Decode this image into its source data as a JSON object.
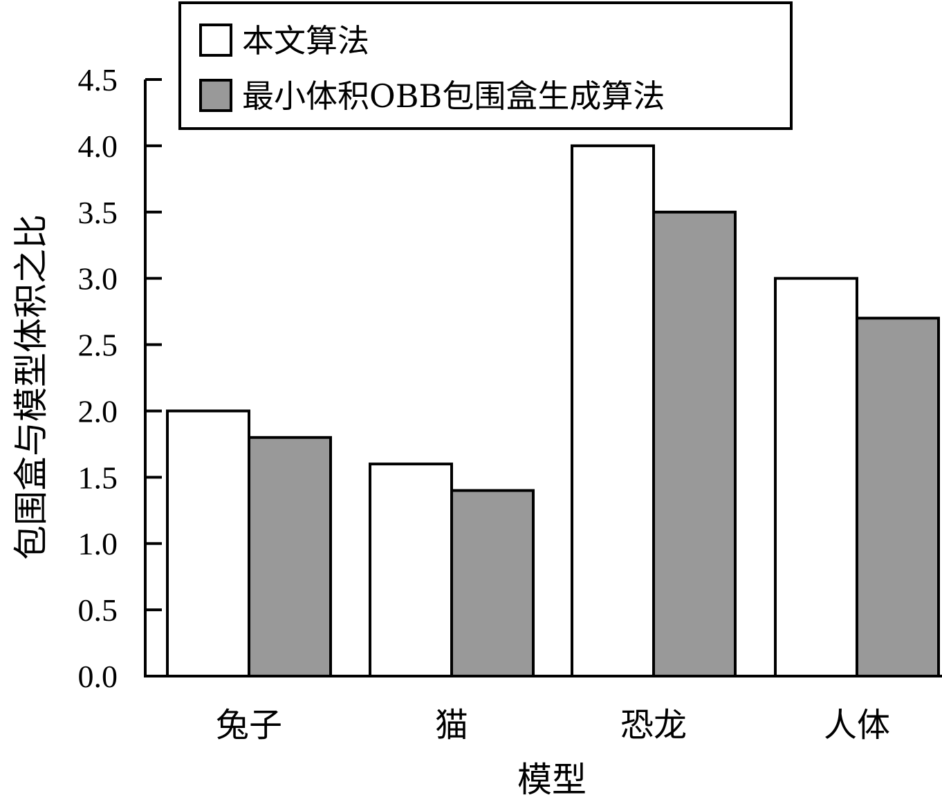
{
  "chart_data": {
    "type": "bar",
    "categories": [
      "兔子",
      "猫",
      "恐龙",
      "人体"
    ],
    "series": [
      {
        "name": "本文算法",
        "values": [
          2.0,
          1.6,
          4.0,
          3.0
        ],
        "color": "#ffffff"
      },
      {
        "name": "最小体积OBB包围盒生成算法",
        "values": [
          1.8,
          1.4,
          3.5,
          2.7
        ],
        "color": "#999999"
      }
    ],
    "yticks": [
      "0.0",
      "0.5",
      "1.0",
      "1.5",
      "2.0",
      "2.5",
      "3.0",
      "3.5",
      "4.0",
      "4.5"
    ],
    "xlabel": "模型",
    "ylabel": "包围盒与模型体积之比",
    "ylim": [
      0,
      4.5
    ],
    "grid": false,
    "legend_position": "top"
  }
}
